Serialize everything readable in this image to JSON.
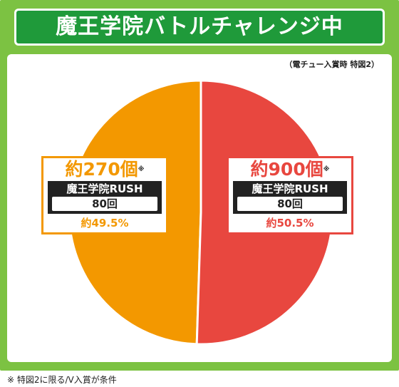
{
  "title": "魔王学院バトルチャレンジ中",
  "note_top": "（電チュー入賞時 特図2）",
  "footnote": "※ 特図2に限る/V入賞が条件",
  "colors": {
    "orange": "#f39800",
    "red": "#e8473f",
    "green": "#7cc242",
    "dark_green": "#1f9a3a"
  },
  "chart_data": {
    "type": "pie",
    "title": "魔王学院バトルチャレンジ中",
    "slices": [
      {
        "label": "約270個",
        "mark": "※",
        "rush_name": "魔王学院RUSH",
        "rush_count": "80回",
        "percent_label": "約49.5%",
        "value": 49.5,
        "color": "#f39800"
      },
      {
        "label": "約900個",
        "mark": "※",
        "rush_name": "魔王学院RUSH",
        "rush_count": "80回",
        "percent_label": "約50.5%",
        "value": 50.5,
        "color": "#e8473f"
      }
    ]
  }
}
